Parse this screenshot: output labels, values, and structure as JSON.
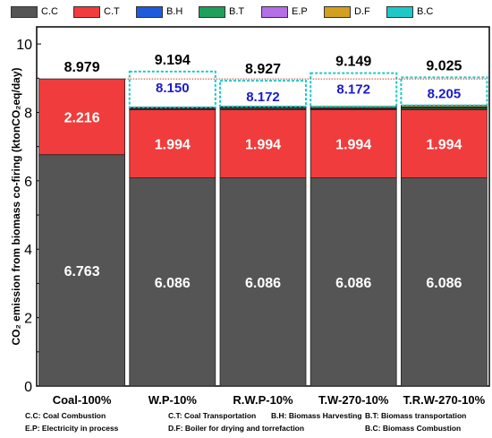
{
  "chart_data": {
    "type": "bar",
    "stacked": true,
    "categories": [
      "Coal-100%",
      "W.P-10%",
      "R.W.P-10%",
      "T.W-270-10%",
      "T.R.W-270-10%"
    ],
    "series": [
      {
        "name": "C.C",
        "color": "#555555",
        "values": [
          6.763,
          6.086,
          6.086,
          6.086,
          6.086
        ]
      },
      {
        "name": "C.T",
        "color": "#f03c3c",
        "values": [
          2.216,
          1.994,
          1.994,
          1.994,
          1.994
        ]
      },
      {
        "name": "B.H",
        "color": "#1e5adc",
        "values": [
          0,
          0.015,
          0.015,
          0.015,
          0.015
        ]
      },
      {
        "name": "B.T",
        "color": "#1ea05a",
        "values": [
          0,
          0.01,
          0.03,
          0.01,
          0.04
        ]
      },
      {
        "name": "E.P",
        "color": "#b46ee6",
        "values": [
          0,
          0.025,
          0.025,
          0.025,
          0.025
        ]
      },
      {
        "name": "D.F",
        "color": "#d2a01e",
        "values": [
          0,
          0.02,
          0.022,
          0.042,
          0.045
        ]
      },
      {
        "name": "B.C",
        "color": "#1ec8c8",
        "values": [
          0,
          1.044,
          0.755,
          0.977,
          0.82
        ]
      }
    ],
    "bar_labels": {
      "C.C": [
        "6.763",
        "6.086",
        "6.086",
        "6.086",
        "6.086"
      ],
      "C.T": [
        "2.216",
        "1.994",
        "1.994",
        "1.994",
        "1.994"
      ],
      "total": [
        "8.979",
        "9.194",
        "8.927",
        "9.149",
        "9.025"
      ],
      "subtotal": [
        "",
        "8.150",
        "8.172",
        "8.172",
        "8.205"
      ]
    },
    "reference_line": 8.979,
    "ylabel": "CO₂ emission from biomass co-firing (ktonCO₂eq/day)",
    "ylim": [
      0,
      10.5
    ],
    "yticks": [
      "0",
      "2",
      "4",
      "6",
      "8",
      "10"
    ],
    "ytick_values": [
      0,
      2,
      4,
      6,
      8,
      10
    ],
    "legend_position": "top"
  },
  "footnotes": {
    "cc": "C.C: Coal Combustion",
    "ct": "C.T: Coal Transportation",
    "bh": "B.H: Biomass Harvesting",
    "bt": "B.T: Biomass transportation",
    "ep": "E.P: Electricity in process",
    "df": "D.F: Boiler for drying and torrefaction",
    "bc": "B.C: Biomass Combustion"
  }
}
